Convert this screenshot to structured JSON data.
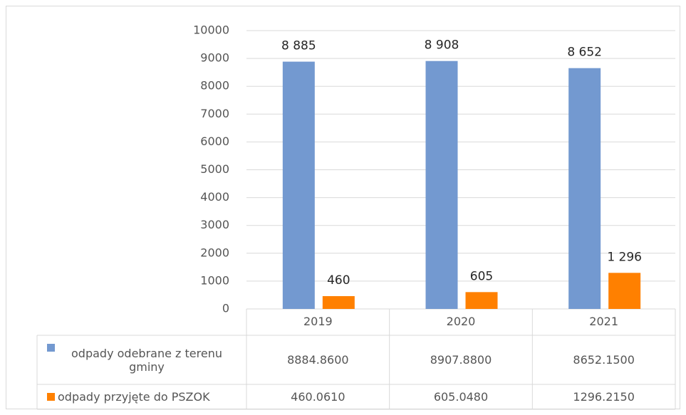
{
  "chart_data": {
    "type": "bar",
    "categories": [
      "2019",
      "2020",
      "2021"
    ],
    "series": [
      {
        "name": "odpady odebrane z terenu gminy",
        "color": "#7399d0",
        "values": [
          8884.86,
          8907.88,
          8652.15
        ],
        "value_labels": [
          "8 885",
          "8 908",
          "8 652"
        ],
        "table_labels": [
          "8884.8600",
          "8907.8800",
          "8652.1500"
        ]
      },
      {
        "name": "odpady przyjęte do PSZOK",
        "color": "#ff8000",
        "values": [
          460.061,
          605.048,
          1296.215
        ],
        "value_labels": [
          "460",
          "605",
          "1 296"
        ],
        "table_labels": [
          "460.0610",
          "605.0480",
          "1296.2150"
        ]
      }
    ],
    "ylim": [
      0,
      10000
    ],
    "yticks": [
      0,
      1000,
      2000,
      3000,
      4000,
      5000,
      6000,
      7000,
      8000,
      9000,
      10000
    ],
    "grid": true
  }
}
